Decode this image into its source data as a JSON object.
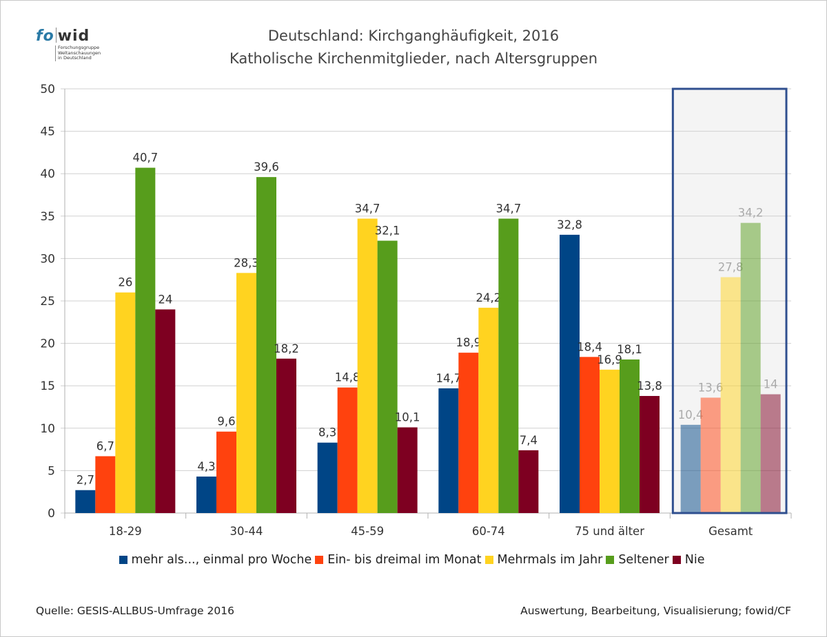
{
  "logo": {
    "word_left": "fo",
    "word_right": "wid",
    "sub_lines": [
      "Forschungsgruppe",
      "Weltanschauungen",
      "in Deutschland"
    ]
  },
  "title_line1": "Deutschland: Kirchganghäufigkeit, 2016",
  "title_line2": "Katholische Kirchenmitglieder, nach Altersgruppen",
  "footer": {
    "source": "Quelle: GESIS-ALLBUS-Umfrage 2016",
    "credit": "Auswertung, Bearbeitung, Visualisierung; fowid/CF"
  },
  "chart_data": {
    "type": "bar",
    "categories": [
      "18-29",
      "30-44",
      "45-59",
      "60-74",
      "75 und älter",
      "Gesamt"
    ],
    "series": [
      {
        "name": "mehr als..., einmal pro Woche",
        "color": "#004586",
        "values": [
          2.7,
          4.3,
          8.3,
          14.7,
          32.8,
          10.4
        ],
        "labels": [
          "2,7",
          "4,3",
          "8,3",
          "14,7",
          "32,8",
          "10,4"
        ]
      },
      {
        "name": "Ein- bis dreimal im Monat",
        "color": "#ff420e",
        "values": [
          6.7,
          9.6,
          14.8,
          18.9,
          18.4,
          13.6
        ],
        "labels": [
          "6,7",
          "9,6",
          "14,8",
          "18,9",
          "18,4",
          "13,6"
        ]
      },
      {
        "name": "Mehrmals im Jahr",
        "color": "#ffd320",
        "values": [
          26,
          28.3,
          34.7,
          24.2,
          16.9,
          27.8
        ],
        "labels": [
          "26",
          "28,3",
          "34,7",
          "24,2",
          "16,9",
          "27,8"
        ]
      },
      {
        "name": "Seltener",
        "color": "#579d1c",
        "values": [
          40.7,
          39.6,
          32.1,
          34.7,
          18.1,
          34.2
        ],
        "labels": [
          "40,7",
          "39,6",
          "32,1",
          "34,7",
          "18,1",
          "34,2"
        ]
      },
      {
        "name": "Nie",
        "color": "#7e0021",
        "values": [
          24,
          18.2,
          10.1,
          7.4,
          13.8,
          14
        ],
        "labels": [
          "24",
          "18,2",
          "10,1",
          "7,4",
          "13,8",
          "14"
        ]
      }
    ],
    "ylim": [
      0,
      50
    ],
    "yticks": [
      "0",
      "5",
      "10",
      "15",
      "20",
      "25",
      "30",
      "35",
      "40",
      "45",
      "50"
    ],
    "grid": true,
    "legend_position": "bottom",
    "highlighted_category": "Gesamt",
    "highlight_border_color": "#2f4f8f",
    "highlight_fill_color": "#f4f4f4"
  }
}
